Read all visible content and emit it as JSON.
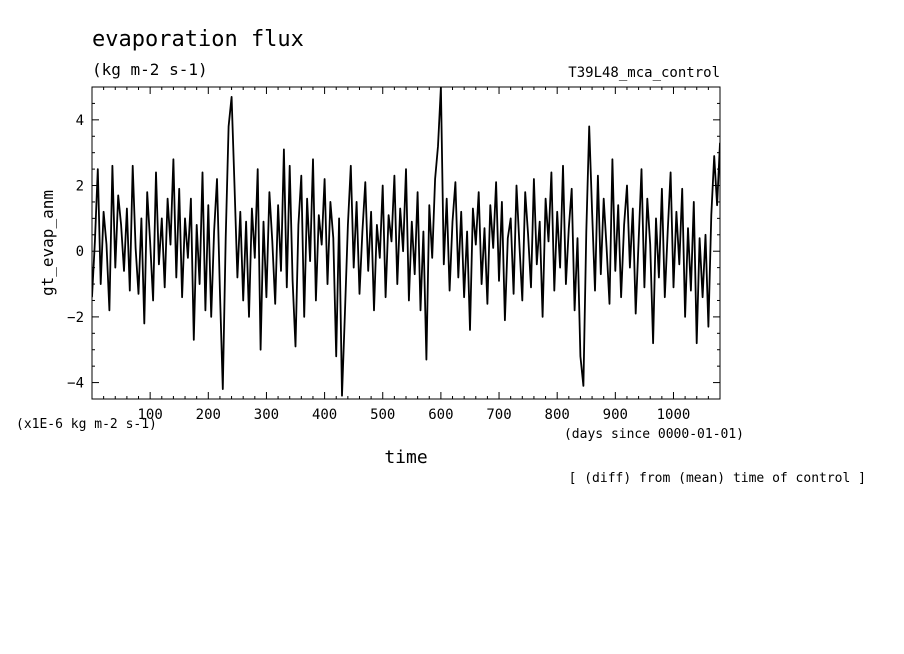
{
  "chart_data": {
    "type": "line",
    "title": "evaporation flux",
    "subtitle": "(kg m-2 s-1)",
    "run_label": "T39L48_mca_control",
    "xlabel": "time",
    "ylabel": "gt_evap_anm",
    "x_unit_label": "(days since 0000-01-01)",
    "y_unit_label": "(x1E-6 kg m-2 s-1)",
    "footer_note": "[ (diff) from (mean) time of control ]",
    "xlim": [
      0,
      1080
    ],
    "ylim": [
      -4.5,
      5
    ],
    "x_ticks": [
      100,
      200,
      300,
      400,
      500,
      600,
      700,
      800,
      900,
      1000
    ],
    "y_ticks": [
      -4,
      -2,
      0,
      2,
      4
    ],
    "x_tick_labels": [
      "100",
      "200",
      "300",
      "400",
      "500",
      "600",
      "700",
      "800",
      "900",
      "1000"
    ],
    "y_tick_labels": [
      "−4",
      "−2",
      "0",
      "2",
      "4"
    ],
    "line_color": "#000000",
    "anchors": [
      [
        0,
        -1.4
      ],
      [
        5,
        0.3
      ],
      [
        10,
        2.5
      ],
      [
        15,
        -1.0
      ],
      [
        20,
        1.2
      ],
      [
        25,
        0.2
      ],
      [
        30,
        -1.8
      ],
      [
        35,
        2.6
      ],
      [
        40,
        -0.5
      ],
      [
        45,
        1.7
      ],
      [
        50,
        0.8
      ],
      [
        55,
        -0.6
      ],
      [
        60,
        1.3
      ],
      [
        65,
        -1.2
      ],
      [
        70,
        2.6
      ],
      [
        75,
        0.1
      ],
      [
        80,
        -1.3
      ],
      [
        85,
        1.0
      ],
      [
        90,
        -2.2
      ],
      [
        95,
        1.8
      ],
      [
        100,
        0.3
      ],
      [
        105,
        -1.5
      ],
      [
        110,
        2.4
      ],
      [
        115,
        -0.4
      ],
      [
        120,
        1.0
      ],
      [
        125,
        -1.1
      ],
      [
        130,
        1.6
      ],
      [
        135,
        0.2
      ],
      [
        140,
        2.8
      ],
      [
        145,
        -0.8
      ],
      [
        150,
        1.9
      ],
      [
        155,
        -1.4
      ],
      [
        160,
        1.0
      ],
      [
        165,
        -0.2
      ],
      [
        170,
        1.6
      ],
      [
        175,
        -2.7
      ],
      [
        180,
        0.8
      ],
      [
        185,
        -1.0
      ],
      [
        190,
        2.4
      ],
      [
        195,
        -1.8
      ],
      [
        200,
        1.4
      ],
      [
        205,
        -2.0
      ],
      [
        210,
        0.6
      ],
      [
        215,
        2.2
      ],
      [
        220,
        -1.2
      ],
      [
        225,
        -4.2
      ],
      [
        230,
        0.4
      ],
      [
        235,
        3.8
      ],
      [
        240,
        4.7
      ],
      [
        245,
        2.0
      ],
      [
        250,
        -0.8
      ],
      [
        255,
        1.2
      ],
      [
        260,
        -1.5
      ],
      [
        265,
        0.9
      ],
      [
        270,
        -2.0
      ],
      [
        275,
        1.3
      ],
      [
        280,
        -0.2
      ],
      [
        285,
        2.5
      ],
      [
        290,
        -3.0
      ],
      [
        295,
        0.9
      ],
      [
        300,
        -1.4
      ],
      [
        305,
        1.8
      ],
      [
        310,
        0.3
      ],
      [
        315,
        -1.6
      ],
      [
        320,
        1.4
      ],
      [
        325,
        -0.6
      ],
      [
        330,
        3.1
      ],
      [
        335,
        -1.1
      ],
      [
        340,
        2.6
      ],
      [
        345,
        -0.9
      ],
      [
        350,
        -2.9
      ],
      [
        355,
        0.8
      ],
      [
        360,
        2.3
      ],
      [
        365,
        -2.0
      ],
      [
        370,
        1.6
      ],
      [
        375,
        -0.3
      ],
      [
        380,
        2.8
      ],
      [
        385,
        -1.5
      ],
      [
        390,
        1.1
      ],
      [
        395,
        0.2
      ],
      [
        400,
        2.2
      ],
      [
        405,
        -1.0
      ],
      [
        410,
        1.5
      ],
      [
        415,
        0.4
      ],
      [
        420,
        -3.2
      ],
      [
        425,
        1.0
      ],
      [
        430,
        -4.4
      ],
      [
        435,
        -1.9
      ],
      [
        440,
        0.8
      ],
      [
        445,
        2.6
      ],
      [
        450,
        -0.5
      ],
      [
        455,
        1.5
      ],
      [
        460,
        -1.3
      ],
      [
        465,
        0.6
      ],
      [
        470,
        2.1
      ],
      [
        475,
        -0.6
      ],
      [
        480,
        1.2
      ],
      [
        485,
        -1.8
      ],
      [
        490,
        0.8
      ],
      [
        495,
        -0.2
      ],
      [
        500,
        2.0
      ],
      [
        505,
        -1.4
      ],
      [
        510,
        1.1
      ],
      [
        515,
        0.3
      ],
      [
        520,
        2.3
      ],
      [
        525,
        -1.0
      ],
      [
        530,
        1.3
      ],
      [
        535,
        0.0
      ],
      [
        540,
        2.5
      ],
      [
        545,
        -1.5
      ],
      [
        550,
        0.9
      ],
      [
        555,
        -0.7
      ],
      [
        560,
        1.8
      ],
      [
        565,
        -1.8
      ],
      [
        570,
        0.6
      ],
      [
        575,
        -3.3
      ],
      [
        580,
        1.4
      ],
      [
        585,
        -0.2
      ],
      [
        590,
        2.2
      ],
      [
        595,
        3.2
      ],
      [
        600,
        5.0
      ],
      [
        605,
        -0.4
      ],
      [
        610,
        1.6
      ],
      [
        615,
        -1.2
      ],
      [
        620,
        0.9
      ],
      [
        625,
        2.1
      ],
      [
        630,
        -0.8
      ],
      [
        635,
        1.2
      ],
      [
        640,
        -1.4
      ],
      [
        645,
        0.6
      ],
      [
        650,
        -2.4
      ],
      [
        655,
        1.3
      ],
      [
        660,
        0.2
      ],
      [
        665,
        1.8
      ],
      [
        670,
        -1.0
      ],
      [
        675,
        0.7
      ],
      [
        680,
        -1.6
      ],
      [
        685,
        1.4
      ],
      [
        690,
        0.1
      ],
      [
        695,
        2.1
      ],
      [
        700,
        -0.9
      ],
      [
        705,
        1.5
      ],
      [
        710,
        -2.1
      ],
      [
        715,
        0.4
      ],
      [
        720,
        1.0
      ],
      [
        725,
        -1.3
      ],
      [
        730,
        2.0
      ],
      [
        735,
        0.2
      ],
      [
        740,
        -1.5
      ],
      [
        745,
        1.8
      ],
      [
        750,
        0.5
      ],
      [
        755,
        -1.1
      ],
      [
        760,
        2.2
      ],
      [
        765,
        -0.4
      ],
      [
        770,
        0.9
      ],
      [
        775,
        -2.0
      ],
      [
        780,
        1.6
      ],
      [
        785,
        0.3
      ],
      [
        790,
        2.4
      ],
      [
        795,
        -1.2
      ],
      [
        800,
        1.2
      ],
      [
        805,
        -0.5
      ],
      [
        810,
        2.6
      ],
      [
        815,
        -1.0
      ],
      [
        820,
        0.7
      ],
      [
        825,
        1.9
      ],
      [
        830,
        -1.8
      ],
      [
        835,
        0.4
      ],
      [
        840,
        -3.2
      ],
      [
        845,
        -4.1
      ],
      [
        850,
        0.6
      ],
      [
        855,
        3.8
      ],
      [
        860,
        1.2
      ],
      [
        865,
        -1.2
      ],
      [
        870,
        2.3
      ],
      [
        875,
        -0.7
      ],
      [
        880,
        1.6
      ],
      [
        885,
        0.1
      ],
      [
        890,
        -1.6
      ],
      [
        895,
        2.8
      ],
      [
        900,
        -0.6
      ],
      [
        905,
        1.4
      ],
      [
        910,
        -1.4
      ],
      [
        915,
        0.8
      ],
      [
        920,
        2.0
      ],
      [
        925,
        -0.5
      ],
      [
        930,
        1.3
      ],
      [
        935,
        -1.9
      ],
      [
        940,
        0.3
      ],
      [
        945,
        2.5
      ],
      [
        950,
        -1.1
      ],
      [
        955,
        1.6
      ],
      [
        960,
        0.2
      ],
      [
        965,
        -2.8
      ],
      [
        970,
        1.0
      ],
      [
        975,
        -0.8
      ],
      [
        980,
        1.9
      ],
      [
        985,
        -1.4
      ],
      [
        990,
        0.6
      ],
      [
        995,
        2.4
      ],
      [
        1000,
        -1.1
      ],
      [
        1005,
        1.2
      ],
      [
        1010,
        -0.4
      ],
      [
        1015,
        1.9
      ],
      [
        1020,
        -2.0
      ],
      [
        1025,
        0.7
      ],
      [
        1030,
        -1.2
      ],
      [
        1035,
        1.5
      ],
      [
        1040,
        -2.8
      ],
      [
        1045,
        0.4
      ],
      [
        1050,
        -1.4
      ],
      [
        1055,
        0.5
      ],
      [
        1060,
        -2.3
      ],
      [
        1065,
        1.1
      ],
      [
        1070,
        2.9
      ],
      [
        1075,
        1.4
      ],
      [
        1080,
        3.3
      ]
    ]
  }
}
